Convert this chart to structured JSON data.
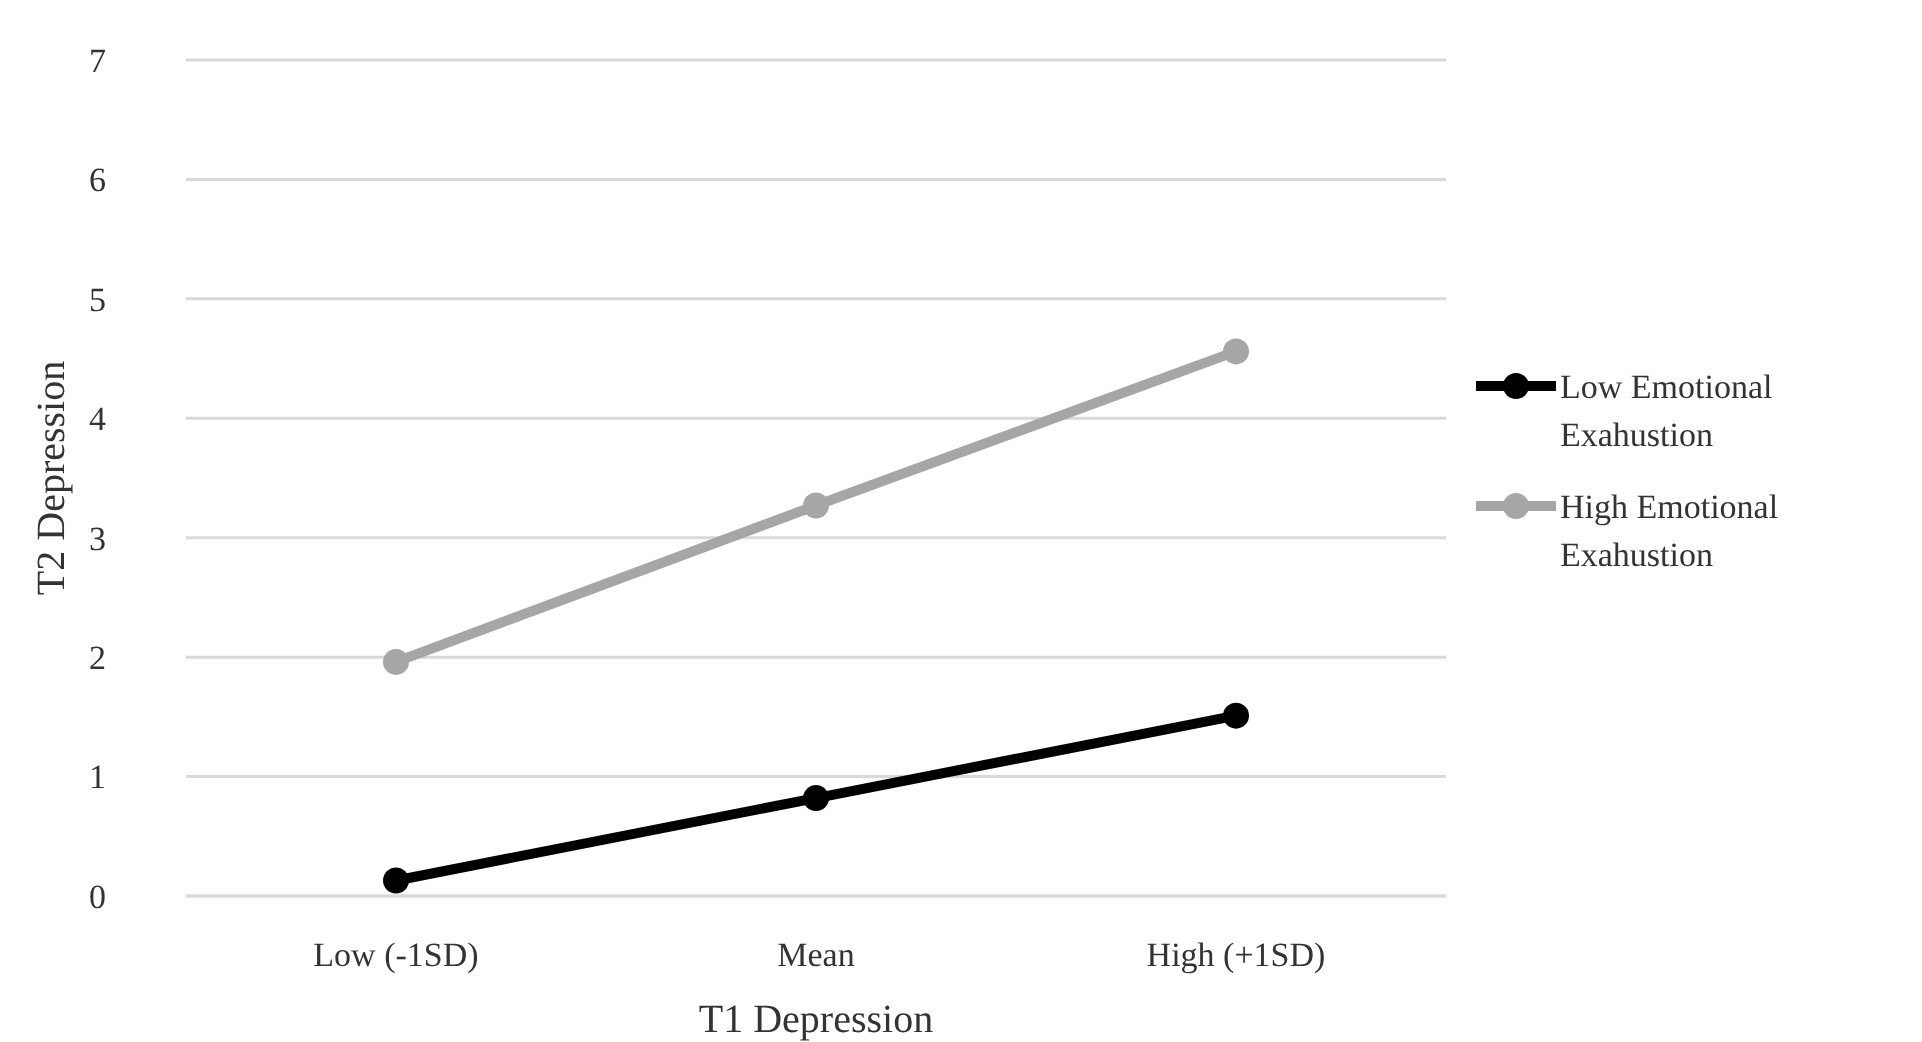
{
  "chart_data": {
    "type": "line",
    "xlabel": "T1 Depression",
    "ylabel": "T2 Depression",
    "categories": [
      "Low (-1SD)",
      "Mean",
      "High (+1SD)"
    ],
    "series": [
      {
        "name": "Low Emotional Exahustion",
        "color": "#000000",
        "values": [
          0.13,
          0.82,
          1.51
        ]
      },
      {
        "name": "High Emotional Exahustion",
        "color": "#a6a6a6",
        "values": [
          1.96,
          3.27,
          4.56
        ]
      }
    ],
    "ylim": [
      0,
      7
    ],
    "yticks": [
      0,
      1,
      2,
      3,
      4,
      5,
      6,
      7
    ],
    "grid": "y",
    "legend": "right",
    "marker": "circle",
    "line_style": "solid"
  }
}
